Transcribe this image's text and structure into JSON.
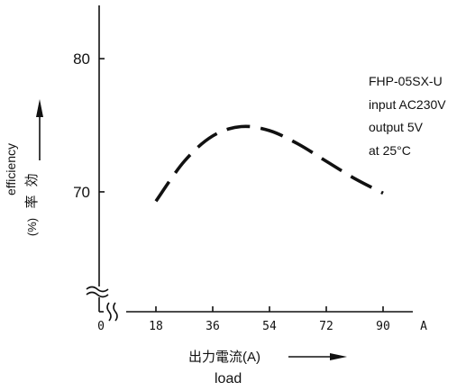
{
  "chart_data": {
    "type": "line",
    "x_unit": "A",
    "x_ticks": [
      "0",
      "18",
      "36",
      "54",
      "72",
      "90"
    ],
    "x_tick_values": [
      0,
      18,
      36,
      54,
      72,
      90
    ],
    "y_ticks": [
      "70",
      "80"
    ],
    "y_tick_values": [
      70,
      80
    ],
    "xlim": [
      0,
      100
    ],
    "ylim": [
      61,
      84
    ],
    "x_break": true,
    "y_break": true,
    "xlabel_jp": "出力電流(A)",
    "xlabel_en": "load",
    "ylabel_jp_1": "効",
    "ylabel_jp_2": "率",
    "ylabel_pct": "(%)",
    "ylabel_en": "efficiency",
    "series": [
      {
        "style": "dashed",
        "x": [
          18,
          27,
          36,
          45,
          54,
          63,
          72,
          81,
          90
        ],
        "y": [
          69.3,
          72.3,
          74.2,
          74.9,
          74.6,
          73.6,
          72.3,
          71.0,
          69.9
        ]
      }
    ],
    "annotation": [
      "FHP-05SX-U",
      "input AC230V",
      "output 5V",
      "at 25°C"
    ],
    "grid": false,
    "colors": {
      "line": "#111111",
      "background": "#ffffff"
    }
  }
}
